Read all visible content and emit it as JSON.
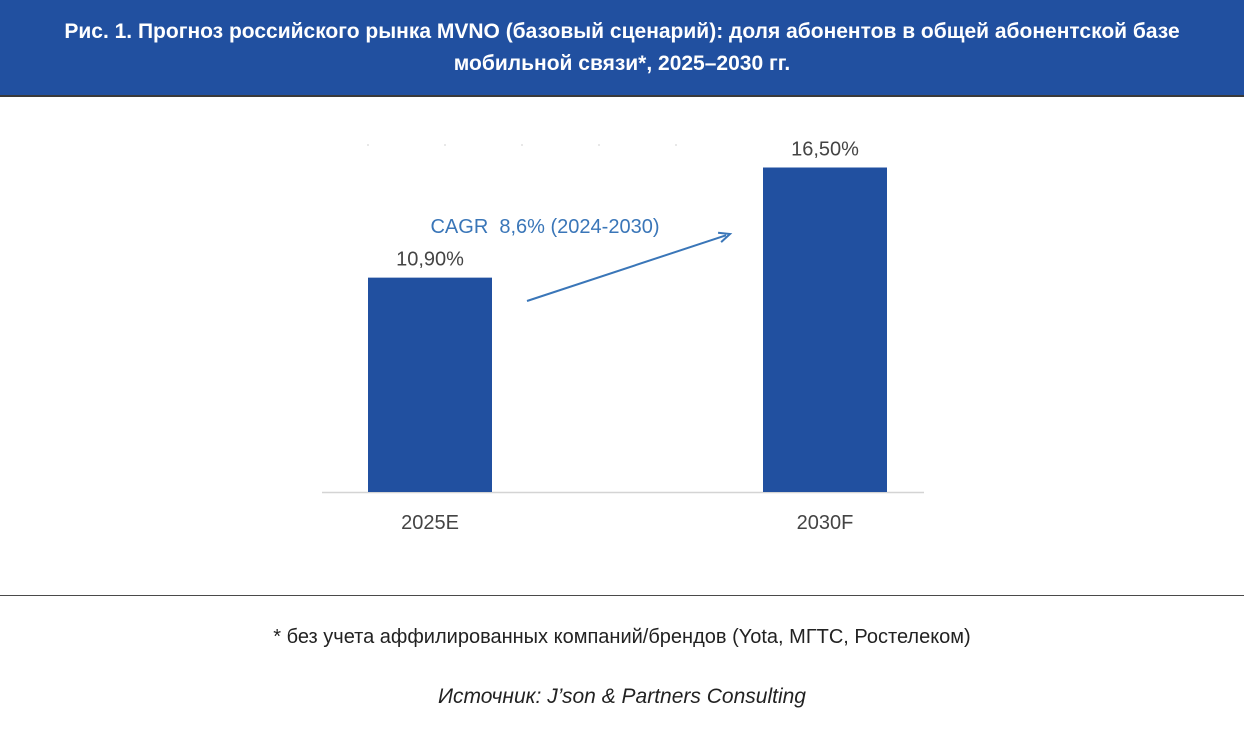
{
  "figure": {
    "title": "Рис. 1. Прогноз российского рынка MVNO (базовый сценарий): доля абонентов в общей абонентской базе мобильной связи*, 2025–2030 гг.",
    "footnote": "* без учета аффилированных компаний/брендов (Yota, МГТС, Ростелеком)",
    "source": "Источник: J’son & Partners Consulting"
  },
  "colors": {
    "header_background": "#2150a0",
    "bar": "#2150a0",
    "annotation": "#3a76b8",
    "label_text": "#444444"
  },
  "chart_data": {
    "type": "bar",
    "categories": [
      "2025E",
      "2030F"
    ],
    "values": [
      10.9,
      16.5
    ],
    "value_labels": [
      "10,90%",
      "16,50%"
    ],
    "unit": "%",
    "title": "",
    "xlabel": "",
    "ylabel": "",
    "ylim": [
      0,
      18
    ],
    "grid": false,
    "legend": "none",
    "annotation": {
      "text": "CAGR  8,6% (2024-2030)",
      "arrow": "from 2025E toward 2030F"
    }
  }
}
